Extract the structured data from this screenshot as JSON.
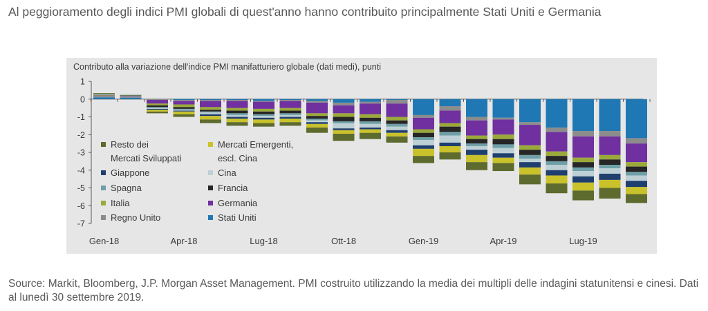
{
  "headline": "Al peggioramento degli indici PMI globali di quest'anno hanno contribuito principalmente Stati Uniti e Germania",
  "source": "Source: Markit, Bloomberg, J.P. Morgan Asset Management. PMI costruito utilizzando la media dei multipli delle indagini statunitensi e cinesi. Dati al lunedì 30 settembre 2019.",
  "chart_data": {
    "type": "bar",
    "stacked": true,
    "title": "Contributo alla variazione dell'indice PMI manifatturiero globale (dati medi), punti",
    "xlabel": "",
    "ylabel": "",
    "ylim": [
      -7,
      1
    ],
    "y_ticks": [
      "1",
      "0",
      "-1",
      "-2",
      "-3",
      "-4",
      "-5",
      "-6",
      "-7"
    ],
    "x_tick_labels": [
      "Gen-18",
      "Apr-18",
      "Lug-18",
      "Ott-18",
      "Gen-19",
      "Apr-19",
      "Lug-19"
    ],
    "categories": [
      "Gen-18",
      "Feb-18",
      "Mar-18",
      "Apr-18",
      "Mag-18",
      "Giu-18",
      "Lug-18",
      "Ago-18",
      "Set-18",
      "Ott-18",
      "Nov-18",
      "Dic-18",
      "Gen-19",
      "Feb-19",
      "Mar-19",
      "Apr-19",
      "Mag-19",
      "Giu-19",
      "Lug-19",
      "Ago-19",
      "Set-19"
    ],
    "grid": false,
    "legend_position": "inside-left",
    "series": [
      {
        "name": "Stati Uniti",
        "color": "#1f78b4",
        "values": [
          0.1,
          0.08,
          0.0,
          -0.05,
          -0.05,
          -0.05,
          -0.1,
          -0.05,
          -0.1,
          -0.2,
          -0.15,
          -0.05,
          -0.9,
          -0.4,
          -1.0,
          -1.05,
          -1.3,
          -1.6,
          -1.8,
          -1.8,
          -2.2
        ]
      },
      {
        "name": "Regno Unito",
        "color": "#8c8c8c",
        "values": [
          0.08,
          0.08,
          -0.05,
          -0.05,
          -0.05,
          -0.05,
          -0.05,
          -0.05,
          -0.1,
          -0.15,
          -0.1,
          -0.2,
          -0.15,
          -0.25,
          -0.2,
          -0.1,
          -0.15,
          -0.25,
          -0.3,
          -0.3,
          -0.3
        ]
      },
      {
        "name": "Germania",
        "color": "#7030a0",
        "values": [
          0.02,
          0.02,
          -0.2,
          -0.2,
          -0.35,
          -0.4,
          -0.4,
          -0.4,
          -0.6,
          -0.45,
          -0.6,
          -0.75,
          -0.65,
          -0.7,
          -0.85,
          -0.85,
          -1.15,
          -1.1,
          -1.2,
          -1.05,
          -1.05
        ]
      },
      {
        "name": "Italia",
        "color": "#9aa93a",
        "values": [
          0.03,
          0.02,
          -0.1,
          -0.15,
          -0.15,
          -0.15,
          -0.15,
          -0.15,
          -0.15,
          -0.2,
          -0.2,
          -0.2,
          -0.2,
          -0.2,
          -0.2,
          -0.25,
          -0.25,
          -0.25,
          -0.25,
          -0.25,
          -0.25
        ]
      },
      {
        "name": "Francia",
        "color": "#262626",
        "values": [
          0.02,
          0.02,
          -0.1,
          -0.1,
          -0.1,
          -0.15,
          -0.15,
          -0.15,
          -0.15,
          -0.25,
          -0.2,
          -0.2,
          -0.25,
          -0.3,
          -0.25,
          -0.3,
          -0.3,
          -0.3,
          -0.3,
          -0.3,
          -0.3
        ]
      },
      {
        "name": "Spagna",
        "color": "#6fa0a8",
        "values": [
          0.02,
          0.02,
          -0.05,
          -0.05,
          -0.05,
          -0.1,
          -0.1,
          -0.1,
          -0.1,
          -0.1,
          -0.15,
          -0.15,
          -0.15,
          -0.2,
          -0.15,
          -0.2,
          -0.2,
          -0.2,
          -0.2,
          -0.2,
          -0.2
        ]
      },
      {
        "name": "Cina",
        "color": "#bcd0d5",
        "values": [
          0.03,
          0.02,
          -0.05,
          -0.05,
          -0.1,
          -0.1,
          -0.1,
          -0.1,
          -0.1,
          -0.3,
          -0.2,
          -0.2,
          -0.3,
          -0.4,
          -0.2,
          -0.3,
          -0.2,
          -0.3,
          -0.3,
          -0.3,
          -0.3
        ]
      },
      {
        "name": "Giappone",
        "color": "#1f3f6e",
        "values": [
          0.02,
          0.0,
          -0.05,
          -0.05,
          -0.1,
          -0.1,
          -0.1,
          -0.1,
          -0.1,
          -0.1,
          -0.1,
          -0.15,
          -0.2,
          -0.2,
          -0.3,
          -0.25,
          -0.3,
          -0.3,
          -0.35,
          -0.35,
          -0.35
        ]
      },
      {
        "name": "Mercati Emergenti, escl. Cina",
        "color": "#c9c22b",
        "values": [
          0.01,
          0.0,
          -0.1,
          -0.15,
          -0.2,
          -0.2,
          -0.2,
          -0.2,
          -0.2,
          -0.2,
          -0.2,
          -0.2,
          -0.4,
          -0.35,
          -0.4,
          -0.3,
          -0.4,
          -0.45,
          -0.45,
          -0.45,
          -0.4
        ]
      },
      {
        "name": "Resto dei Mercati Sviluppati",
        "color": "#5e6b2e",
        "values": [
          0.01,
          0.0,
          -0.1,
          -0.15,
          -0.2,
          -0.2,
          -0.2,
          -0.2,
          -0.3,
          -0.4,
          -0.35,
          -0.35,
          -0.4,
          -0.4,
          -0.45,
          -0.45,
          -0.55,
          -0.55,
          -0.55,
          -0.6,
          -0.5
        ]
      }
    ],
    "legend": [
      {
        "label_lines": [
          "Resto dei",
          "Mercati Sviluppati"
        ],
        "color": "#5e6b2e"
      },
      {
        "label_lines": [
          "Mercati Emergenti,",
          "escl. Cina"
        ],
        "color": "#c9c22b"
      },
      {
        "label_lines": [
          "Giappone"
        ],
        "color": "#1f3f6e"
      },
      {
        "label_lines": [
          "Cina"
        ],
        "color": "#bcd0d5"
      },
      {
        "label_lines": [
          "Spagna"
        ],
        "color": "#6fa0a8"
      },
      {
        "label_lines": [
          "Francia"
        ],
        "color": "#262626"
      },
      {
        "label_lines": [
          "Italia"
        ],
        "color": "#9aa93a"
      },
      {
        "label_lines": [
          "Germania"
        ],
        "color": "#7030a0"
      },
      {
        "label_lines": [
          "Regno Unito"
        ],
        "color": "#8c8c8c"
      },
      {
        "label_lines": [
          "Stati Uniti"
        ],
        "color": "#1f78b4"
      }
    ]
  }
}
